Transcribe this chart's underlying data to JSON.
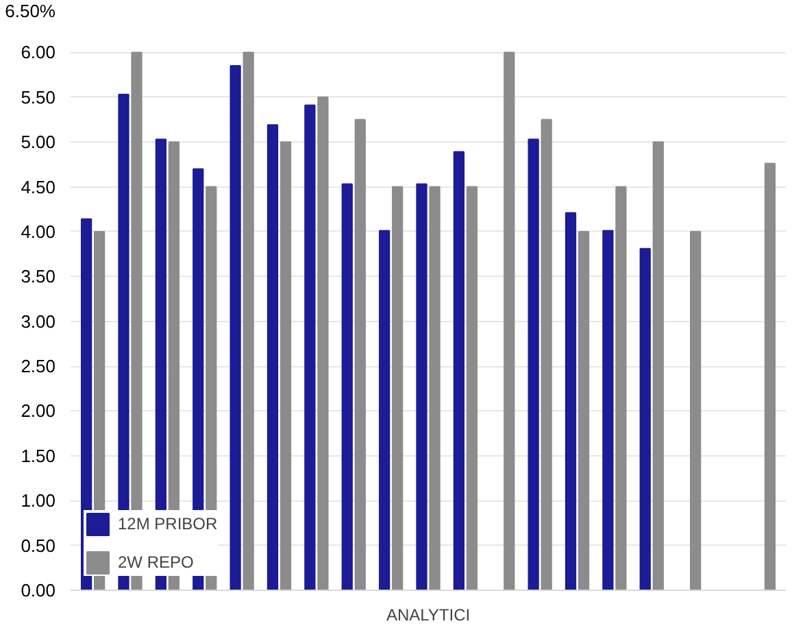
{
  "chart_data": {
    "type": "bar",
    "xlabel": "ANALYTICI",
    "categories": [
      null,
      null,
      null,
      null,
      null,
      null,
      null,
      null,
      null,
      null,
      null,
      null,
      null,
      null,
      null,
      null,
      null,
      null,
      null
    ],
    "series": [
      {
        "name": "12M PRIBOR",
        "color": "#1c1c96",
        "values": [
          4.14,
          5.53,
          5.03,
          4.7,
          5.85,
          5.19,
          5.41,
          4.53,
          4.01,
          4.53,
          4.89,
          null,
          5.03,
          4.21,
          4.01,
          3.81,
          null,
          null,
          null
        ]
      },
      {
        "name": "2W REPO",
        "color": "#8c8c8c",
        "values": [
          4.0,
          6.0,
          5.0,
          4.5,
          6.0,
          5.0,
          5.5,
          5.25,
          4.5,
          4.5,
          4.5,
          6.0,
          5.25,
          4.0,
          4.5,
          5.0,
          4.0,
          null,
          4.76
        ]
      }
    ],
    "ylim": [
      0,
      6.5
    ],
    "yticks": [
      {
        "value": 0,
        "label": "0.00"
      },
      {
        "value": 0.5,
        "label": "0.50"
      },
      {
        "value": 1,
        "label": "1.00"
      },
      {
        "value": 1.5,
        "label": "1.50"
      },
      {
        "value": 2,
        "label": "2.00"
      },
      {
        "value": 2.5,
        "label": "2.50"
      },
      {
        "value": 3,
        "label": "3.00"
      },
      {
        "value": 3.5,
        "label": "3.50"
      },
      {
        "value": 4,
        "label": "4.00"
      },
      {
        "value": 4.5,
        "label": "4.50"
      },
      {
        "value": 5,
        "label": "5.00"
      },
      {
        "value": 5.5,
        "label": "5.50"
      },
      {
        "value": 6,
        "label": "6.00"
      },
      {
        "value": 6.5,
        "label": "6.50%"
      }
    ],
    "grid": "y",
    "legend": "bottom left"
  }
}
